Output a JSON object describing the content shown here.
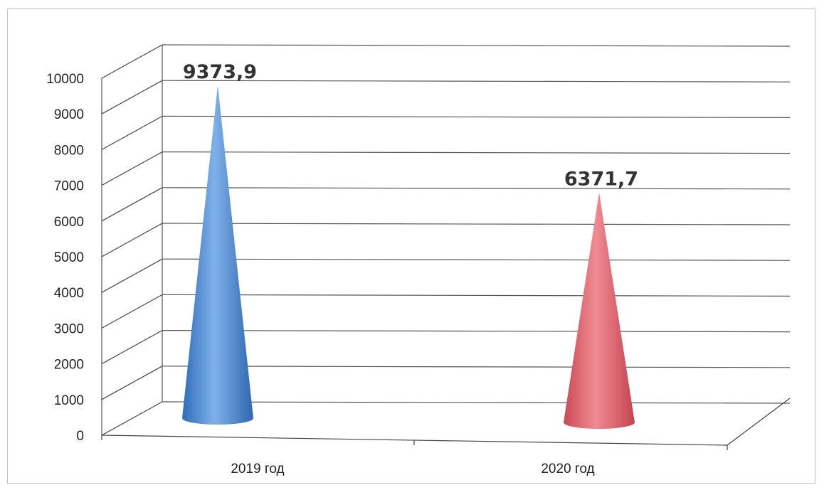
{
  "chart_data": {
    "type": "bar",
    "style": "3d-cone",
    "categories": [
      "2019 год",
      "2020 год"
    ],
    "values": [
      9373.9,
      6371.7
    ],
    "data_labels": [
      "9373,9",
      "6371,7"
    ],
    "bar_colors": [
      "#4a86d0",
      "#e0606a"
    ],
    "ylim": [
      0,
      10000
    ],
    "yticks": [
      0,
      1000,
      2000,
      3000,
      4000,
      5000,
      6000,
      7000,
      8000,
      9000,
      10000
    ],
    "grid": true,
    "legend": "none",
    "title": "",
    "xlabel": "",
    "ylabel": ""
  }
}
